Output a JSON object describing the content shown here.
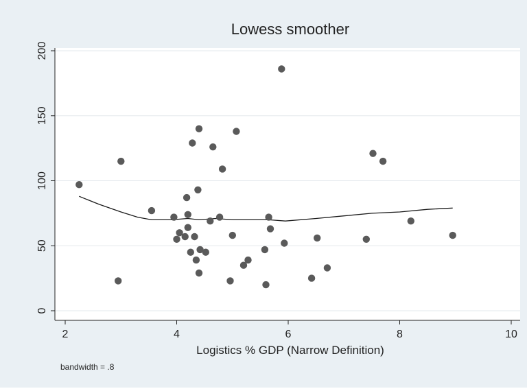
{
  "chart_data": {
    "type": "scatter",
    "title": "Lowess smoother",
    "xlabel": "Logistics % GDP (Narrow Definition)",
    "ylabel": "",
    "note": "bandwidth = .8",
    "xlim": [
      2,
      10
    ],
    "ylim": [
      0,
      200
    ],
    "xticks": [
      "2",
      "4",
      "6",
      "8",
      "10"
    ],
    "yticks": [
      "0",
      "50",
      "100",
      "150",
      "200"
    ],
    "grid": true,
    "legend": "none",
    "colors": {
      "outer_background": "#eaf0f4",
      "plot_background": "#ffffff",
      "grid": "#e3e8ec",
      "marker": "#5a5a5a",
      "line": "#1a1a1a"
    },
    "points": [
      {
        "x": 2.25,
        "y": 97
      },
      {
        "x": 2.95,
        "y": 23
      },
      {
        "x": 3.0,
        "y": 115
      },
      {
        "x": 3.55,
        "y": 77
      },
      {
        "x": 3.95,
        "y": 72
      },
      {
        "x": 4.0,
        "y": 55
      },
      {
        "x": 4.05,
        "y": 60
      },
      {
        "x": 4.15,
        "y": 57
      },
      {
        "x": 4.18,
        "y": 87
      },
      {
        "x": 4.2,
        "y": 74
      },
      {
        "x": 4.2,
        "y": 64
      },
      {
        "x": 4.25,
        "y": 45
      },
      {
        "x": 4.28,
        "y": 129
      },
      {
        "x": 4.32,
        "y": 57
      },
      {
        "x": 4.35,
        "y": 39
      },
      {
        "x": 4.38,
        "y": 93
      },
      {
        "x": 4.4,
        "y": 140
      },
      {
        "x": 4.4,
        "y": 29
      },
      {
        "x": 4.42,
        "y": 47
      },
      {
        "x": 4.52,
        "y": 45
      },
      {
        "x": 4.6,
        "y": 69
      },
      {
        "x": 4.65,
        "y": 126
      },
      {
        "x": 4.77,
        "y": 72
      },
      {
        "x": 4.82,
        "y": 109
      },
      {
        "x": 4.96,
        "y": 23
      },
      {
        "x": 5.0,
        "y": 58
      },
      {
        "x": 5.07,
        "y": 138
      },
      {
        "x": 5.2,
        "y": 35
      },
      {
        "x": 5.28,
        "y": 39
      },
      {
        "x": 5.58,
        "y": 47
      },
      {
        "x": 5.6,
        "y": 20
      },
      {
        "x": 5.65,
        "y": 72
      },
      {
        "x": 5.68,
        "y": 63
      },
      {
        "x": 5.88,
        "y": 186
      },
      {
        "x": 5.93,
        "y": 52
      },
      {
        "x": 6.42,
        "y": 25
      },
      {
        "x": 6.52,
        "y": 56
      },
      {
        "x": 6.7,
        "y": 33
      },
      {
        "x": 7.4,
        "y": 55
      },
      {
        "x": 7.52,
        "y": 121
      },
      {
        "x": 7.7,
        "y": 115
      },
      {
        "x": 8.2,
        "y": 69
      },
      {
        "x": 8.95,
        "y": 58
      }
    ],
    "lowess_line": [
      {
        "x": 2.25,
        "y": 88
      },
      {
        "x": 2.6,
        "y": 82
      },
      {
        "x": 3.0,
        "y": 76
      },
      {
        "x": 3.3,
        "y": 72
      },
      {
        "x": 3.55,
        "y": 70
      },
      {
        "x": 3.9,
        "y": 70
      },
      {
        "x": 4.2,
        "y": 71
      },
      {
        "x": 4.4,
        "y": 70
      },
      {
        "x": 4.7,
        "y": 71
      },
      {
        "x": 5.0,
        "y": 70
      },
      {
        "x": 5.3,
        "y": 70
      },
      {
        "x": 5.65,
        "y": 70
      },
      {
        "x": 5.95,
        "y": 69
      },
      {
        "x": 6.5,
        "y": 71
      },
      {
        "x": 7.0,
        "y": 73
      },
      {
        "x": 7.5,
        "y": 75
      },
      {
        "x": 8.0,
        "y": 76
      },
      {
        "x": 8.5,
        "y": 78
      },
      {
        "x": 8.95,
        "y": 79
      }
    ]
  }
}
